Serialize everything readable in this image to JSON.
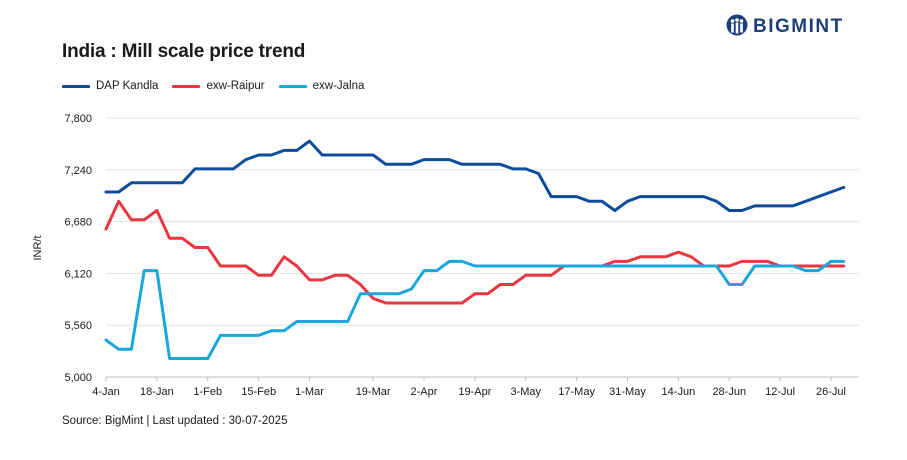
{
  "header": {
    "title": "India : Mill scale price trend",
    "brand": "BIGMINT"
  },
  "source": "Source: BigMint | Last updated : 30-07-2025",
  "colors": {
    "dap_kandla": "#0d4c9c",
    "exw_raipur": "#e8373f",
    "exw_jalna": "#1ba6dc",
    "grid": "#e3e3e3",
    "brand": "#1f3f7a"
  },
  "chart_data": {
    "type": "line",
    "title": "India : Mill scale price trend",
    "xlabel": "",
    "ylabel": "INR/t",
    "ylim": [
      5000,
      7800
    ],
    "yticks": [
      "5,000",
      "5,560",
      "6,120",
      "6,680",
      "7,240",
      "7,800"
    ],
    "ytick_values": [
      5000,
      5560,
      6120,
      6680,
      7240,
      7800
    ],
    "xlim": [
      0,
      29.6
    ],
    "xticks": [
      "4-Jan",
      "18-Jan",
      "1-Feb",
      "15-Feb",
      "1-Mar",
      "19-Mar",
      "2-Apr",
      "19-Apr",
      "3-May",
      "17-May",
      "31-May",
      "14-Jun",
      "28-Jun",
      "12-Jul",
      "26-Jul"
    ],
    "xtick_positions": [
      0,
      2,
      4,
      6,
      8,
      10.5,
      12.5,
      14.5,
      16.5,
      18.5,
      20.5,
      22.5,
      24.5,
      26.5,
      28.5
    ],
    "grid": true,
    "legend_position": "top-left",
    "series": [
      {
        "name": "DAP Kandla",
        "color": "#0d4c9c",
        "x": [
          0,
          0.5,
          1,
          1.5,
          2,
          2.5,
          3,
          3.5,
          4,
          4.5,
          5,
          5.5,
          6,
          6.5,
          7,
          7.5,
          8,
          8.5,
          9,
          9.5,
          10,
          10.5,
          11,
          11.5,
          12,
          12.5,
          13,
          13.5,
          14,
          14.5,
          15,
          15.5,
          16,
          16.5,
          17,
          17.5,
          18,
          18.5,
          19,
          19.5,
          20,
          20.5,
          21,
          21.5,
          22,
          22.5,
          23,
          23.5,
          24,
          24.5,
          25,
          25.5,
          26,
          26.5,
          27,
          27.5,
          28,
          28.5,
          29
        ],
        "values": [
          7000,
          7000,
          7100,
          7100,
          7100,
          7100,
          7100,
          7250,
          7250,
          7250,
          7250,
          7350,
          7400,
          7400,
          7450,
          7450,
          7550,
          7400,
          7400,
          7400,
          7400,
          7400,
          7300,
          7300,
          7300,
          7350,
          7350,
          7350,
          7300,
          7300,
          7300,
          7300,
          7250,
          7250,
          7200,
          6950,
          6950,
          6950,
          6900,
          6900,
          6800,
          6900,
          6950,
          6950,
          6950,
          6950,
          6950,
          6950,
          6900,
          6800,
          6800,
          6850,
          6850,
          6850,
          6850,
          6900,
          6950,
          7000,
          7050
        ]
      },
      {
        "name": "exw-Raipur",
        "color": "#e8373f",
        "x": [
          0,
          0.5,
          1,
          1.5,
          2,
          2.5,
          3,
          3.5,
          4,
          4.5,
          5,
          5.5,
          6,
          6.5,
          7,
          7.5,
          8,
          8.5,
          9,
          9.5,
          10,
          10.5,
          11,
          11.5,
          12,
          12.5,
          13,
          13.5,
          14,
          14.5,
          15,
          15.5,
          16,
          16.5,
          17,
          17.5,
          18,
          18.5,
          19,
          19.5,
          20,
          20.5,
          21,
          21.5,
          22,
          22.5,
          23,
          23.5,
          24,
          24.5,
          25,
          25.5,
          26,
          26.5,
          27,
          27.5,
          28,
          28.5,
          29
        ],
        "values": [
          6600,
          6900,
          6700,
          6700,
          6800,
          6500,
          6500,
          6400,
          6400,
          6200,
          6200,
          6200,
          6100,
          6100,
          6300,
          6200,
          6050,
          6050,
          6100,
          6100,
          6000,
          5850,
          5800,
          5800,
          5800,
          5800,
          5800,
          5800,
          5800,
          5900,
          5900,
          6000,
          6000,
          6100,
          6100,
          6100,
          6200,
          6200,
          6200,
          6200,
          6250,
          6250,
          6300,
          6300,
          6300,
          6350,
          6300,
          6200,
          6200,
          6200,
          6250,
          6250,
          6250,
          6200,
          6200,
          6200,
          6200,
          6200,
          6200
        ]
      },
      {
        "name": "exw-Jalna",
        "color": "#1ba6dc",
        "x": [
          0,
          0.5,
          1,
          1.5,
          2,
          2.5,
          3,
          3.5,
          4,
          4.5,
          5,
          5.5,
          6,
          6.5,
          7,
          7.5,
          8,
          8.5,
          9,
          9.5,
          10,
          10.5,
          11,
          11.5,
          12,
          12.5,
          13,
          13.5,
          14,
          14.5,
          15,
          15.5,
          16,
          16.5,
          17,
          17.5,
          18,
          18.5,
          19,
          19.5,
          20,
          20.5,
          21,
          21.5,
          22,
          22.5,
          23,
          23.5,
          24,
          24.5,
          25,
          25.5,
          26,
          26.5,
          27,
          27.5,
          28,
          28.5,
          29
        ],
        "values": [
          5400,
          5300,
          5300,
          6150,
          6150,
          5200,
          5200,
          5200,
          5200,
          5450,
          5450,
          5450,
          5450,
          5500,
          5500,
          5600,
          5600,
          5600,
          5600,
          5600,
          5900,
          5900,
          5900,
          5900,
          5950,
          6150,
          6150,
          6250,
          6250,
          6200,
          6200,
          6200,
          6200,
          6200,
          6200,
          6200,
          6200,
          6200,
          6200,
          6200,
          6200,
          6200,
          6200,
          6200,
          6200,
          6200,
          6200,
          6200,
          6200,
          6000,
          6000,
          6200,
          6200,
          6200,
          6200,
          6150,
          6150,
          6250,
          6250
        ]
      }
    ]
  }
}
